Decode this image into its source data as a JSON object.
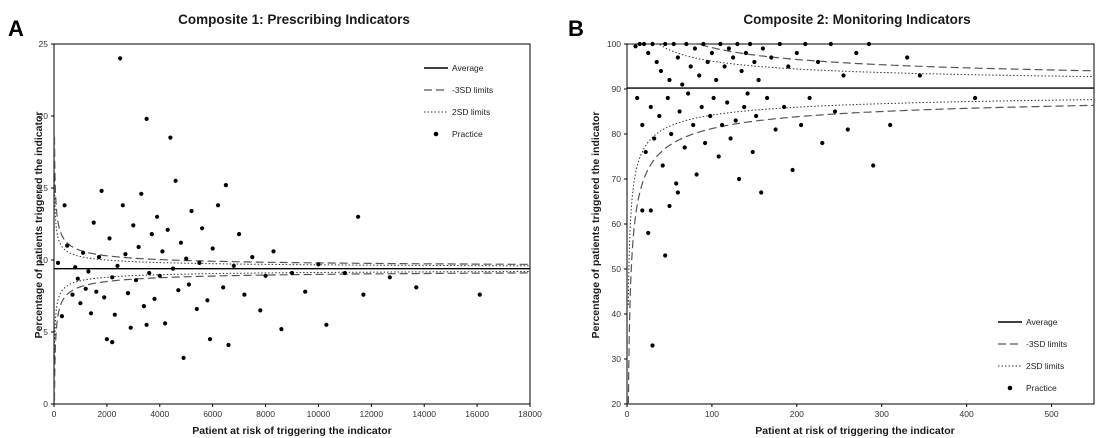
{
  "chart_data": [
    {
      "panel": "A",
      "type": "scatter",
      "title": "Composite 1: Prescribing Indicators",
      "xlabel": "Patient at risk of triggering the indicator",
      "ylabel": "Percentage of patients triggered the indicator",
      "xlim": [
        0,
        18000
      ],
      "ylim": [
        0,
        25
      ],
      "xticks": [
        0,
        2000,
        4000,
        6000,
        8000,
        10000,
        12000,
        14000,
        16000,
        18000
      ],
      "yticks": [
        0,
        5,
        10,
        15,
        20,
        25
      ],
      "average": 9.4,
      "sd_coefficient": 13.3,
      "legend": [
        "Average",
        "-3SD limits",
        "2SD limits",
        "Practice"
      ],
      "legend_position": "top-right",
      "grid": false,
      "series_points": [
        [
          150,
          9.8
        ],
        [
          400,
          13.8
        ],
        [
          300,
          6.1
        ],
        [
          500,
          11
        ],
        [
          700,
          7.6
        ],
        [
          800,
          9.5
        ],
        [
          900,
          8.7
        ],
        [
          1000,
          7
        ],
        [
          1100,
          10.5
        ],
        [
          1200,
          8
        ],
        [
          1300,
          9.2
        ],
        [
          1400,
          6.3
        ],
        [
          1500,
          12.6
        ],
        [
          1600,
          7.8
        ],
        [
          1700,
          10.2
        ],
        [
          1800,
          14.8
        ],
        [
          1900,
          7.4
        ],
        [
          2000,
          4.5
        ],
        [
          2100,
          11.5
        ],
        [
          2200,
          8.8
        ],
        [
          2300,
          6.2
        ],
        [
          2400,
          9.6
        ],
        [
          2500,
          24
        ],
        [
          2600,
          13.8
        ],
        [
          2700,
          10.4
        ],
        [
          2800,
          7.7
        ],
        [
          2900,
          5.3
        ],
        [
          3000,
          12.4
        ],
        [
          3100,
          8.6
        ],
        [
          3200,
          10.9
        ],
        [
          3300,
          14.6
        ],
        [
          3400,
          6.8
        ],
        [
          3500,
          19.8
        ],
        [
          3600,
          9.1
        ],
        [
          3700,
          11.8
        ],
        [
          3800,
          7.3
        ],
        [
          3900,
          13
        ],
        [
          4000,
          8.9
        ],
        [
          4100,
          10.6
        ],
        [
          4200,
          5.6
        ],
        [
          4300,
          12.1
        ],
        [
          4400,
          18.5
        ],
        [
          4500,
          9.4
        ],
        [
          4600,
          15.5
        ],
        [
          4700,
          7.9
        ],
        [
          4800,
          11.2
        ],
        [
          4900,
          3.2
        ],
        [
          5000,
          10.1
        ],
        [
          5100,
          8.3
        ],
        [
          5200,
          13.4
        ],
        [
          5400,
          6.6
        ],
        [
          5500,
          9.8
        ],
        [
          5600,
          12.2
        ],
        [
          5800,
          7.2
        ],
        [
          6000,
          10.8
        ],
        [
          6200,
          13.8
        ],
        [
          6400,
          8.1
        ],
        [
          6500,
          15.2
        ],
        [
          6600,
          4.1
        ],
        [
          6800,
          9.6
        ],
        [
          7000,
          11.8
        ],
        [
          7200,
          7.6
        ],
        [
          7500,
          10.2
        ],
        [
          7800,
          6.5
        ],
        [
          8000,
          8.9
        ],
        [
          8300,
          10.6
        ],
        [
          8600,
          5.2
        ],
        [
          9000,
          9.1
        ],
        [
          9500,
          7.8
        ],
        [
          10000,
          9.7
        ],
        [
          10300,
          5.5
        ],
        [
          11000,
          9.1
        ],
        [
          11500,
          13
        ],
        [
          11700,
          7.6
        ],
        [
          12700,
          8.8
        ],
        [
          13700,
          8.1
        ],
        [
          16100,
          7.6
        ],
        [
          2200,
          4.3
        ],
        [
          3500,
          5.5
        ],
        [
          5900,
          4.5
        ]
      ]
    },
    {
      "panel": "B",
      "type": "scatter",
      "title": "Composite 2: Monitoring Indicators",
      "xlabel": "Patient at risk of triggering the indicator",
      "ylabel": "Percentage of patients triggered the indicator",
      "xlim": [
        0,
        550
      ],
      "ylim": [
        20,
        100
      ],
      "xticks": [
        0,
        100,
        200,
        300,
        400,
        500
      ],
      "yticks": [
        20,
        30,
        40,
        50,
        60,
        70,
        80,
        90,
        100
      ],
      "average": 90.2,
      "sd_coefficient": 30,
      "legend": [
        "Average",
        "-3SD limits",
        "2SD limits",
        "Practice"
      ],
      "legend_position": "bottom-right",
      "grid": false,
      "series_points": [
        [
          10,
          99.5
        ],
        [
          15,
          100
        ],
        [
          20,
          100
        ],
        [
          25,
          98
        ],
        [
          30,
          100
        ],
        [
          35,
          96
        ],
        [
          40,
          94
        ],
        [
          45,
          100
        ],
        [
          50,
          92
        ],
        [
          55,
          100
        ],
        [
          60,
          97
        ],
        [
          65,
          91
        ],
        [
          70,
          100
        ],
        [
          75,
          95
        ],
        [
          80,
          99
        ],
        [
          85,
          93
        ],
        [
          90,
          100
        ],
        [
          95,
          96
        ],
        [
          100,
          98
        ],
        [
          105,
          92
        ],
        [
          110,
          100
        ],
        [
          115,
          95
        ],
        [
          120,
          99
        ],
        [
          125,
          97
        ],
        [
          130,
          100
        ],
        [
          135,
          94
        ],
        [
          140,
          98
        ],
        [
          145,
          100
        ],
        [
          150,
          96
        ],
        [
          155,
          92
        ],
        [
          160,
          99
        ],
        [
          170,
          97
        ],
        [
          180,
          100
        ],
        [
          190,
          95
        ],
        [
          200,
          98
        ],
        [
          210,
          100
        ],
        [
          225,
          96
        ],
        [
          240,
          100
        ],
        [
          255,
          93
        ],
        [
          270,
          98
        ],
        [
          285,
          100
        ],
        [
          330,
          97
        ],
        [
          345,
          93
        ],
        [
          12,
          88
        ],
        [
          18,
          82
        ],
        [
          22,
          76
        ],
        [
          28,
          86
        ],
        [
          32,
          79
        ],
        [
          38,
          84
        ],
        [
          42,
          73
        ],
        [
          48,
          88
        ],
        [
          52,
          80
        ],
        [
          58,
          69
        ],
        [
          62,
          85
        ],
        [
          68,
          77
        ],
        [
          72,
          89
        ],
        [
          78,
          82
        ],
        [
          82,
          71
        ],
        [
          88,
          86
        ],
        [
          92,
          78
        ],
        [
          98,
          84
        ],
        [
          102,
          88
        ],
        [
          108,
          75
        ],
        [
          112,
          82
        ],
        [
          118,
          87
        ],
        [
          122,
          79
        ],
        [
          128,
          83
        ],
        [
          132,
          70
        ],
        [
          138,
          86
        ],
        [
          142,
          89
        ],
        [
          148,
          76
        ],
        [
          152,
          84
        ],
        [
          158,
          67
        ],
        [
          165,
          88
        ],
        [
          175,
          81
        ],
        [
          185,
          86
        ],
        [
          195,
          72
        ],
        [
          205,
          82
        ],
        [
          215,
          88
        ],
        [
          230,
          78
        ],
        [
          245,
          85
        ],
        [
          260,
          81
        ],
        [
          290,
          73
        ],
        [
          310,
          82
        ],
        [
          410,
          88
        ],
        [
          25,
          58
        ],
        [
          28,
          63
        ],
        [
          45,
          53
        ],
        [
          50,
          64
        ],
        [
          30,
          33
        ],
        [
          18,
          63
        ],
        [
          60,
          67
        ]
      ]
    }
  ]
}
